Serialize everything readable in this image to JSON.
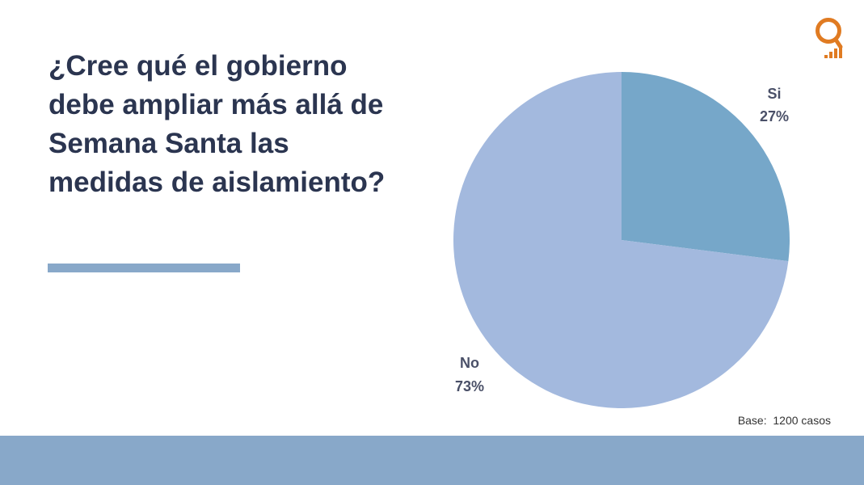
{
  "question": "¿Cree qué el gobierno debe ampliar más allá de Semana Santa las medidas de aislamiento?",
  "base_note": "Base:  1200 casos",
  "colors": {
    "title": "#2b3550",
    "rule": "#88a8c9",
    "footer": "#88a8c9",
    "logo": "#e07b22"
  },
  "logo_icon": "q-chart-logo-icon",
  "chart_data": {
    "type": "pie",
    "title": "",
    "slices": [
      {
        "label": "Si",
        "value": 27,
        "value_label": "27%",
        "color": "#76a7c9"
      },
      {
        "label": "No",
        "value": 73,
        "value_label": "73%",
        "color": "#a3b9de"
      }
    ],
    "start": "12 o'clock",
    "direction": "clockwise",
    "legend": "none"
  }
}
